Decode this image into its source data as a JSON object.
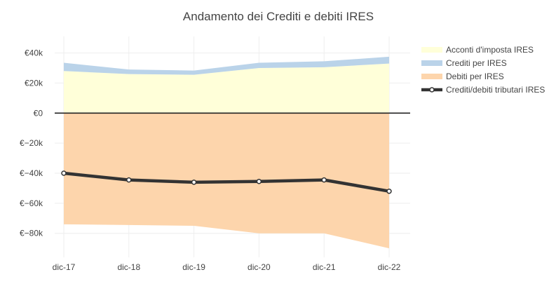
{
  "chart_data": {
    "type": "area",
    "title": "Andamento dei Crediti e debiti IRES",
    "categories": [
      "dic-17",
      "dic-18",
      "dic-19",
      "dic-20",
      "dic-21",
      "dic-22"
    ],
    "series": [
      {
        "name": "Acconti d'imposta IRES",
        "kind": "stacked-area",
        "values": [
          28000,
          26000,
          25500,
          30000,
          30500,
          33000
        ],
        "color": "#ffffd9"
      },
      {
        "name": "Crediti per IRES",
        "kind": "stacked-area",
        "values": [
          5500,
          3000,
          2800,
          3500,
          4000,
          4500
        ],
        "color": "#bad3e9"
      },
      {
        "name": "Debiti per IRES",
        "kind": "area",
        "values": [
          -74000,
          -74500,
          -75000,
          -80000,
          -80000,
          -90000
        ],
        "color": "#fdd5ac"
      },
      {
        "name": "Crediti/debiti tributari IRES",
        "kind": "line",
        "values": [
          -40000,
          -44500,
          -46000,
          -45500,
          -44500,
          -52000
        ],
        "color": "#333333"
      }
    ],
    "y_ticks": [
      40000,
      20000,
      0,
      -20000,
      -40000,
      -60000,
      -80000
    ],
    "y_tick_labels": [
      "€40k",
      "€20k",
      "€0",
      "€−20k",
      "€−40k",
      "€−60k",
      "€−80k"
    ],
    "ylim": [
      -96000,
      51000
    ],
    "grid": true,
    "legend_position": "top-right"
  }
}
